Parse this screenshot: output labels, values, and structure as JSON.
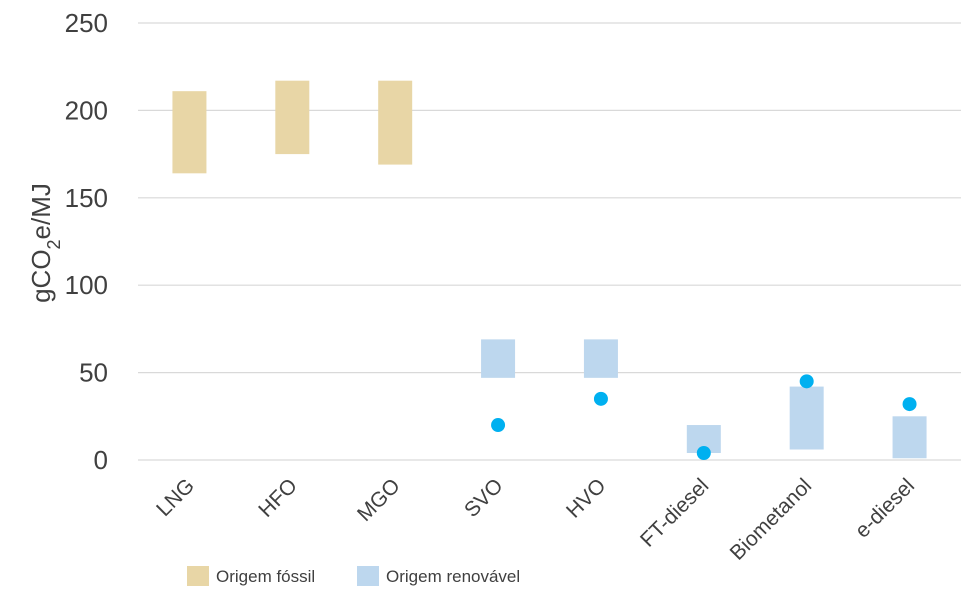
{
  "chart_data": {
    "type": "floating-bar-with-points",
    "ylabel_parts": [
      "gCO",
      "2",
      "e/MJ"
    ],
    "ylim": [
      0,
      250
    ],
    "yticks": [
      0,
      50,
      100,
      150,
      200,
      250
    ],
    "grid": true,
    "categories": [
      "LNG",
      "HFO",
      "MGO",
      "SVO",
      "HVO",
      "FT-diesel",
      "Biometanol",
      "e-diesel"
    ],
    "series": [
      {
        "name": "Origem fóssil",
        "color": "#e8d6a6",
        "ranges": [
          [
            164,
            211
          ],
          [
            175,
            217
          ],
          [
            169,
            217
          ],
          null,
          null,
          null,
          null,
          null
        ]
      },
      {
        "name": "Origem renovável",
        "color": "#bdd7ee",
        "ranges": [
          null,
          null,
          null,
          [
            47,
            69
          ],
          [
            47,
            69
          ],
          [
            4,
            20
          ],
          [
            6,
            42
          ],
          [
            1,
            25
          ]
        ]
      }
    ],
    "points": {
      "color": "#00b0f0",
      "values": [
        null,
        null,
        null,
        20,
        35,
        4,
        45,
        32
      ]
    },
    "legend": {
      "position": "bottom-left",
      "items": [
        "Origem fóssil",
        "Origem renovável"
      ]
    }
  }
}
